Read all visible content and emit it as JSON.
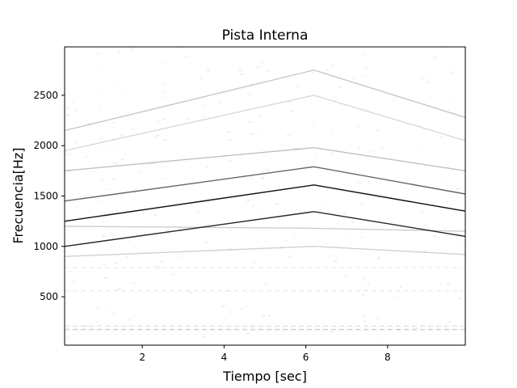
{
  "chart_data": {
    "type": "heatmap",
    "title": "Pista Interna",
    "xlabel": "Tiempo [sec]",
    "ylabel": "Frecuencia[Hz]",
    "xlim": [
      0.1,
      9.9
    ],
    "ylim": [
      20,
      2980
    ],
    "xticks": [
      2,
      4,
      6,
      8
    ],
    "yticks": [
      500,
      1000,
      1500,
      2000,
      2500
    ],
    "colormap": "Greys",
    "grid": false,
    "apex_time": 6.2,
    "ridges": [
      {
        "start": [
          0.1,
          1250
        ],
        "peak": [
          6.2,
          1610
        ],
        "end": [
          9.9,
          1350
        ],
        "intensity": 0.95
      },
      {
        "start": [
          0.1,
          1450
        ],
        "peak": [
          6.2,
          1790
        ],
        "end": [
          9.9,
          1520
        ],
        "intensity": 0.6
      },
      {
        "start": [
          0.1,
          1000
        ],
        "peak": [
          6.2,
          1345
        ],
        "end": [
          9.9,
          1100
        ],
        "intensity": 0.85
      },
      {
        "start": [
          0.1,
          1750
        ],
        "peak": [
          6.2,
          1980
        ],
        "end": [
          9.9,
          1750
        ],
        "intensity": 0.25
      },
      {
        "start": [
          0.1,
          2150
        ],
        "peak": [
          6.2,
          2750
        ],
        "end": [
          9.9,
          2280
        ],
        "intensity": 0.22
      },
      {
        "start": [
          0.1,
          1950
        ],
        "peak": [
          6.2,
          2500
        ],
        "end": [
          9.9,
          2050
        ],
        "intensity": 0.15
      },
      {
        "start": [
          0.1,
          1200
        ],
        "peak": [
          6.2,
          1180
        ],
        "end": [
          9.9,
          1150
        ],
        "intensity": 0.2
      },
      {
        "start": [
          0.1,
          900
        ],
        "peak": [
          6.2,
          1000
        ],
        "end": [
          9.9,
          920
        ],
        "intensity": 0.18
      }
    ],
    "bands": [
      {
        "y": 175,
        "intensity": 0.35
      },
      {
        "y": 210,
        "intensity": 0.2
      },
      {
        "y": 560,
        "intensity": 0.15
      },
      {
        "y": 790,
        "intensity": 0.12
      }
    ]
  }
}
